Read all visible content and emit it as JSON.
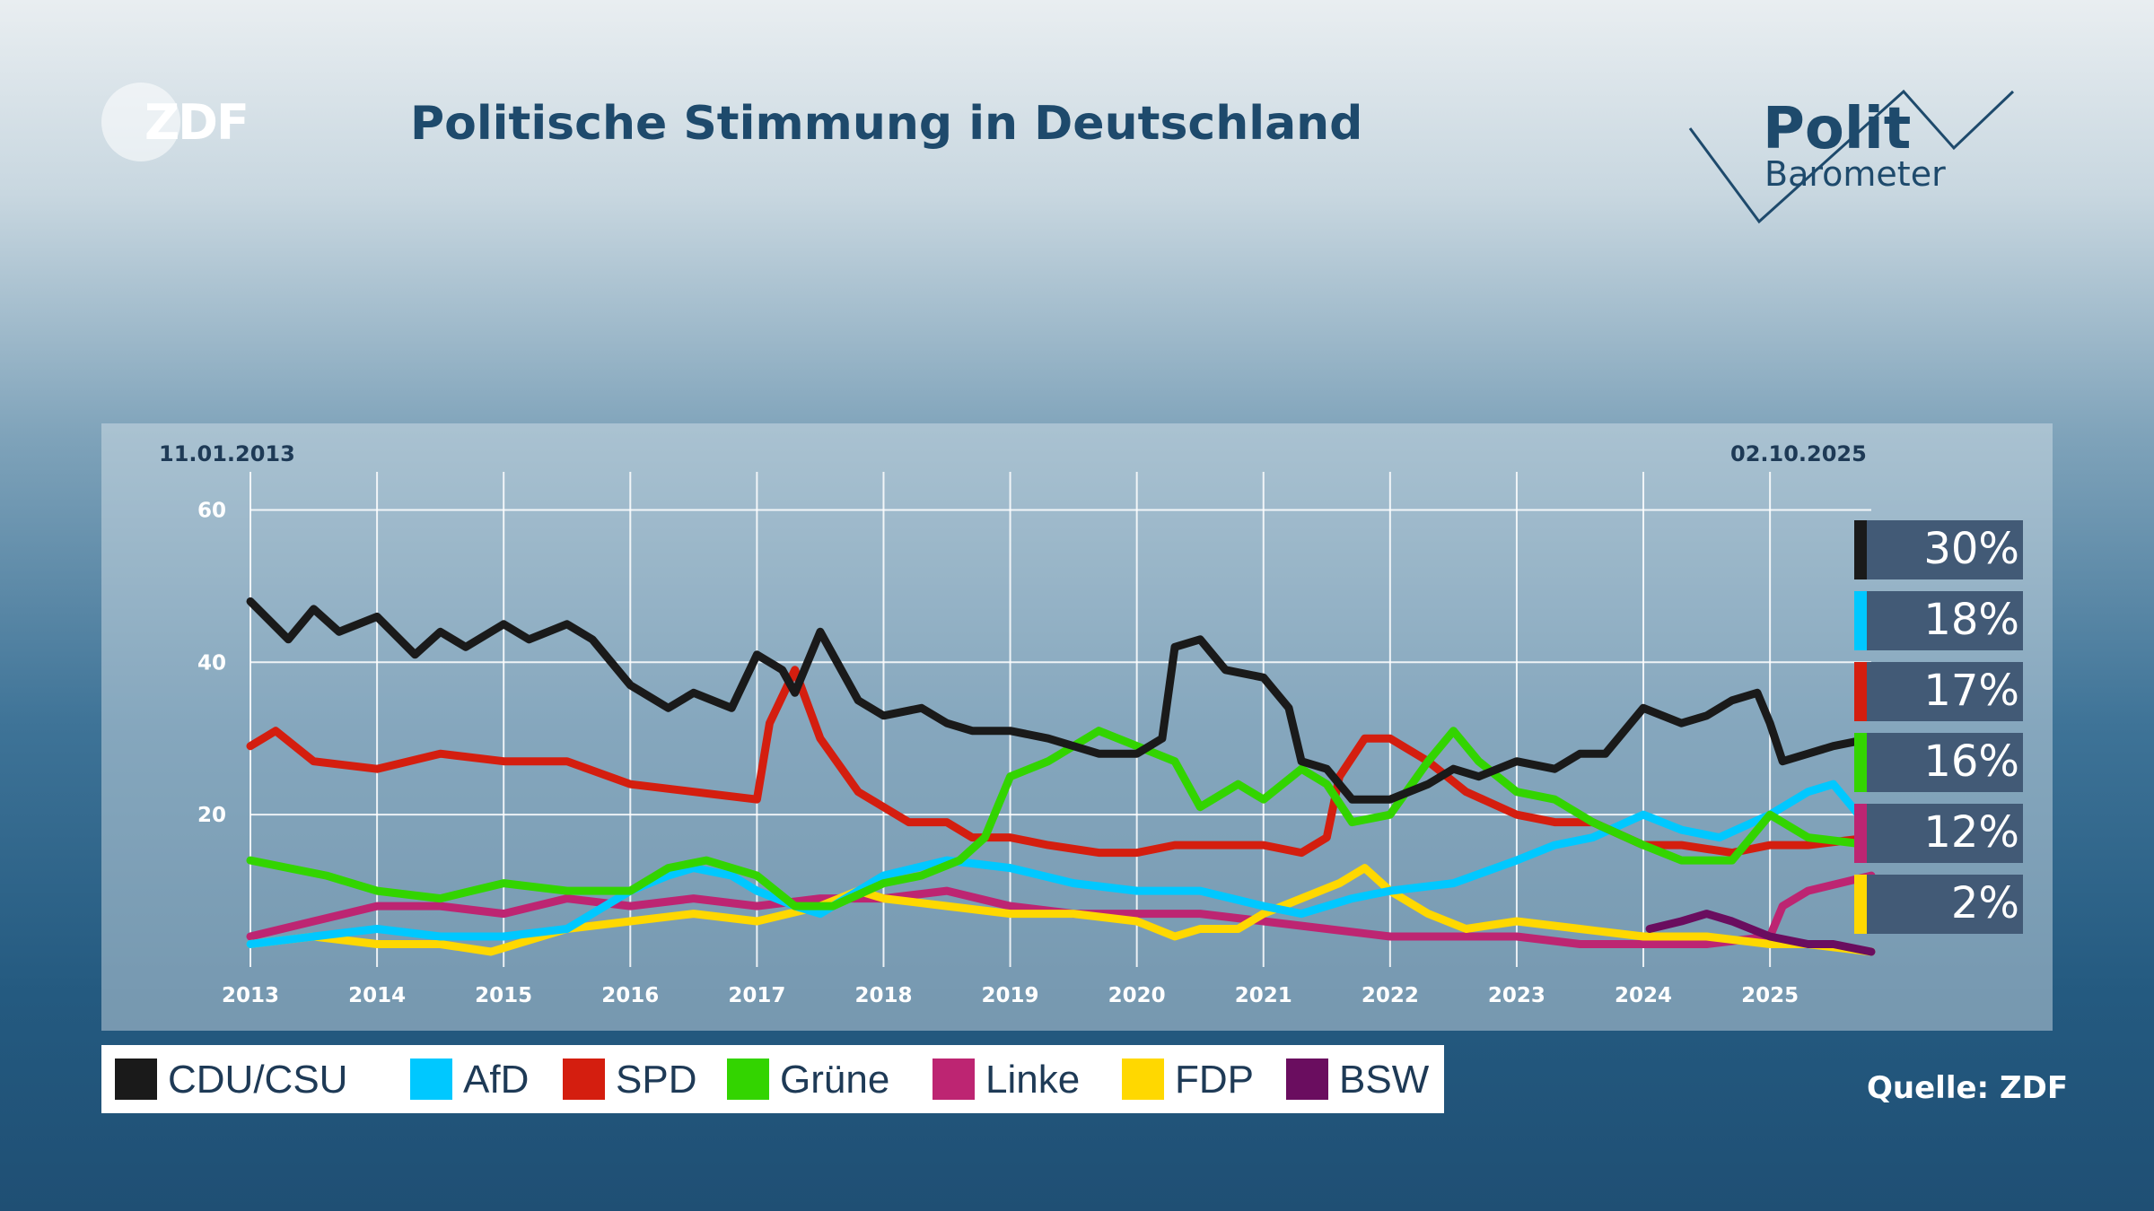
{
  "header": {
    "logo_text": "ZDF",
    "title": "Politische Stimmung in Deutschland",
    "brand_polit": "Polit",
    "brand_barometer": "Barometer"
  },
  "source": "Quelle: ZDF",
  "colors": {
    "CDU/CSU": "#1a1a1a",
    "AfD": "#00c8ff",
    "SPD": "#d41e0f",
    "Grüne": "#33d400",
    "Linke": "#bd2572",
    "FDP": "#ffd800",
    "BSW": "#6a0d5f",
    "accent": "#1e4a6c"
  },
  "chart_data": {
    "type": "line",
    "title": "Politische Stimmung in Deutschland",
    "start_date": "11.01.2013",
    "end_date": "02.10.2025",
    "ylim": [
      0,
      65
    ],
    "yticks": [
      20,
      40,
      60
    ],
    "xlim": [
      2013,
      2025.8
    ],
    "xticks": [
      "2013",
      "2014",
      "2015",
      "2016",
      "2017",
      "2018",
      "2019",
      "2020",
      "2021",
      "2022",
      "2023",
      "2024",
      "2025"
    ],
    "grid": true,
    "legend_position": "bottom",
    "latest_values": [
      {
        "label": "30%",
        "series": "CDU/CSU"
      },
      {
        "label": "18%",
        "series": "AfD"
      },
      {
        "label": "17%",
        "series": "SPD"
      },
      {
        "label": "16%",
        "series": "Grüne"
      },
      {
        "label": "12%",
        "series": "Linke"
      },
      {
        "label": "2%",
        "series": "FDP"
      }
    ],
    "series": [
      {
        "name": "CDU/CSU",
        "x": [
          2013.0,
          2013.3,
          2013.5,
          2013.7,
          2014.0,
          2014.3,
          2014.5,
          2014.7,
          2015.0,
          2015.2,
          2015.5,
          2015.7,
          2016.0,
          2016.3,
          2016.5,
          2016.8,
          2017.0,
          2017.2,
          2017.3,
          2017.5,
          2017.8,
          2018.0,
          2018.3,
          2018.5,
          2018.7,
          2019.0,
          2019.3,
          2019.5,
          2019.7,
          2020.0,
          2020.2,
          2020.3,
          2020.5,
          2020.7,
          2021.0,
          2021.2,
          2021.3,
          2021.5,
          2021.7,
          2022.0,
          2022.3,
          2022.5,
          2022.7,
          2023.0,
          2023.3,
          2023.5,
          2023.7,
          2024.0,
          2024.3,
          2024.5,
          2024.7,
          2024.9,
          2025.0,
          2025.1,
          2025.3,
          2025.5,
          2025.8
        ],
        "y": [
          48,
          43,
          47,
          44,
          46,
          41,
          44,
          42,
          45,
          43,
          45,
          43,
          37,
          34,
          36,
          34,
          41,
          39,
          36,
          44,
          35,
          33,
          34,
          32,
          31,
          31,
          30,
          29,
          28,
          28,
          30,
          42,
          43,
          39,
          38,
          34,
          27,
          26,
          22,
          22,
          24,
          26,
          25,
          27,
          26,
          28,
          28,
          34,
          32,
          33,
          35,
          36,
          32,
          27,
          28,
          29,
          30
        ]
      },
      {
        "name": "AfD",
        "x": [
          2013.0,
          2013.5,
          2014.0,
          2014.5,
          2015.0,
          2015.5,
          2016.0,
          2016.3,
          2016.5,
          2016.8,
          2017.0,
          2017.3,
          2017.5,
          2018.0,
          2018.5,
          2019.0,
          2019.5,
          2020.0,
          2020.5,
          2021.0,
          2021.3,
          2021.7,
          2022.0,
          2022.5,
          2023.0,
          2023.3,
          2023.6,
          2024.0,
          2024.3,
          2024.6,
          2025.0,
          2025.3,
          2025.5,
          2025.8
        ],
        "y": [
          3,
          4,
          5,
          4,
          4,
          5,
          10,
          12,
          13,
          12,
          10,
          8,
          7,
          12,
          14,
          13,
          11,
          10,
          10,
          8,
          7,
          9,
          10,
          11,
          14,
          16,
          17,
          20,
          18,
          17,
          20,
          23,
          24,
          18
        ]
      },
      {
        "name": "SPD",
        "x": [
          2013.0,
          2013.2,
          2013.5,
          2014.0,
          2014.5,
          2015.0,
          2015.5,
          2016.0,
          2016.5,
          2017.0,
          2017.1,
          2017.3,
          2017.5,
          2017.8,
          2018.0,
          2018.2,
          2018.5,
          2018.7,
          2019.0,
          2019.3,
          2019.7,
          2020.0,
          2020.3,
          2020.7,
          2021.0,
          2021.3,
          2021.5,
          2021.6,
          2021.8,
          2022.0,
          2022.3,
          2022.6,
          2023.0,
          2023.3,
          2023.6,
          2024.0,
          2024.3,
          2024.7,
          2025.0,
          2025.3,
          2025.8
        ],
        "y": [
          29,
          31,
          27,
          26,
          28,
          27,
          27,
          24,
          23,
          22,
          32,
          39,
          30,
          23,
          21,
          19,
          19,
          17,
          17,
          16,
          15,
          15,
          16,
          16,
          16,
          15,
          17,
          25,
          30,
          30,
          27,
          23,
          20,
          19,
          19,
          16,
          16,
          15,
          16,
          16,
          17
        ]
      },
      {
        "name": "Grüne",
        "x": [
          2013.0,
          2013.3,
          2013.6,
          2014.0,
          2014.5,
          2015.0,
          2015.5,
          2016.0,
          2016.3,
          2016.6,
          2017.0,
          2017.3,
          2017.6,
          2018.0,
          2018.3,
          2018.6,
          2018.8,
          2019.0,
          2019.3,
          2019.5,
          2019.7,
          2020.0,
          2020.3,
          2020.5,
          2020.8,
          2021.0,
          2021.3,
          2021.5,
          2021.7,
          2022.0,
          2022.3,
          2022.5,
          2022.7,
          2023.0,
          2023.3,
          2023.6,
          2024.0,
          2024.3,
          2024.7,
          2025.0,
          2025.3,
          2025.8
        ],
        "y": [
          14,
          13,
          12,
          10,
          9,
          11,
          10,
          10,
          13,
          14,
          12,
          8,
          8,
          11,
          12,
          14,
          17,
          25,
          27,
          29,
          31,
          29,
          27,
          21,
          24,
          22,
          26,
          24,
          19,
          20,
          27,
          31,
          27,
          23,
          22,
          19,
          16,
          14,
          14,
          20,
          17,
          16
        ]
      },
      {
        "name": "Linke",
        "x": [
          2013.0,
          2013.5,
          2014.0,
          2014.5,
          2015.0,
          2015.5,
          2016.0,
          2016.5,
          2017.0,
          2017.5,
          2018.0,
          2018.5,
          2019.0,
          2019.5,
          2020.0,
          2020.5,
          2021.0,
          2021.5,
          2022.0,
          2022.5,
          2023.0,
          2023.5,
          2024.0,
          2024.5,
          2025.0,
          2025.1,
          2025.3,
          2025.8
        ],
        "y": [
          4,
          6,
          8,
          8,
          7,
          9,
          8,
          9,
          8,
          9,
          9,
          10,
          8,
          7,
          7,
          7,
          6,
          5,
          4,
          4,
          4,
          3,
          3,
          3,
          4,
          8,
          10,
          12
        ]
      },
      {
        "name": "FDP",
        "x": [
          2013.0,
          2013.5,
          2014.0,
          2014.5,
          2014.9,
          2015.1,
          2015.5,
          2016.0,
          2016.5,
          2017.0,
          2017.5,
          2017.8,
          2018.0,
          2018.5,
          2019.0,
          2019.5,
          2020.0,
          2020.3,
          2020.5,
          2020.8,
          2021.0,
          2021.3,
          2021.6,
          2021.8,
          2022.0,
          2022.3,
          2022.6,
          2023.0,
          2023.5,
          2024.0,
          2024.5,
          2025.0,
          2025.3,
          2025.8
        ],
        "y": [
          3,
          4,
          3,
          3,
          2,
          3,
          5,
          6,
          7,
          6,
          8,
          10,
          9,
          8,
          7,
          7,
          6,
          4,
          5,
          5,
          7,
          9,
          11,
          13,
          10,
          7,
          5,
          6,
          5,
          4,
          4,
          3,
          3,
          2
        ]
      },
      {
        "name": "BSW",
        "x": [
          2024.05,
          2024.3,
          2024.5,
          2024.7,
          2025.0,
          2025.3,
          2025.5,
          2025.8
        ],
        "y": [
          5,
          6,
          7,
          6,
          4,
          3,
          3,
          2
        ]
      }
    ]
  },
  "legend": [
    {
      "name": "CDU/CSU",
      "label": "CDU/CSU"
    },
    {
      "name": "AfD",
      "label": "AfD"
    },
    {
      "name": "SPD",
      "label": "SPD"
    },
    {
      "name": "Grüne",
      "label": "Grüne"
    },
    {
      "name": "Linke",
      "label": "Linke"
    },
    {
      "name": "FDP",
      "label": "FDP"
    },
    {
      "name": "BSW",
      "label": "BSW"
    }
  ]
}
